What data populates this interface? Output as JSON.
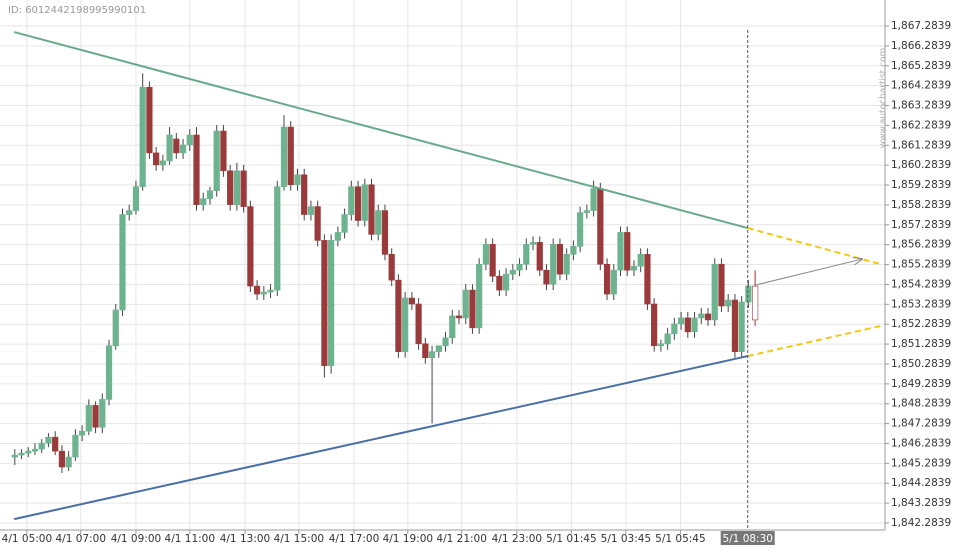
{
  "chart_data": {
    "type": "candlestick",
    "id_label": "ID: 6012442198995990101",
    "watermark": "www.autochartist.com",
    "up_color": "#6db38f",
    "down_color": "#9b3a3a",
    "grid": true,
    "ylim": [
      1842.2839,
      1867.2839
    ],
    "yticks": [
      {
        "value": 1842.2839,
        "label": "1,842.2839"
      },
      {
        "value": 1843.2839,
        "label": "1,843.2839"
      },
      {
        "value": 1844.2839,
        "label": "1,844.2839"
      },
      {
        "value": 1845.2839,
        "label": "1,845.2839"
      },
      {
        "value": 1846.2839,
        "label": "1,846.2839"
      },
      {
        "value": 1847.2839,
        "label": "1,847.2839"
      },
      {
        "value": 1848.2839,
        "label": "1,848.2839"
      },
      {
        "value": 1849.2839,
        "label": "1,849.2839"
      },
      {
        "value": 1850.2839,
        "label": "1,850.2839"
      },
      {
        "value": 1851.2839,
        "label": "1,851.2839"
      },
      {
        "value": 1852.2839,
        "label": "1,852.2839"
      },
      {
        "value": 1853.2839,
        "label": "1,853.2839"
      },
      {
        "value": 1854.2839,
        "label": "1,854.2839"
      },
      {
        "value": 1855.2839,
        "label": "1,855.2839"
      },
      {
        "value": 1856.2839,
        "label": "1,856.2839"
      },
      {
        "value": 1857.2839,
        "label": "1,857.2839"
      },
      {
        "value": 1858.2839,
        "label": "1,858.2839"
      },
      {
        "value": 1859.2839,
        "label": "1,859.2839"
      },
      {
        "value": 1860.2839,
        "label": "1,860.2839"
      },
      {
        "value": 1861.2839,
        "label": "1,861.2839"
      },
      {
        "value": 1862.2839,
        "label": "1,862.2839"
      },
      {
        "value": 1863.2839,
        "label": "1,863.2839"
      },
      {
        "value": 1864.2839,
        "label": "1,864.2839"
      },
      {
        "value": 1865.2839,
        "label": "1,865.2839"
      },
      {
        "value": 1866.2839,
        "label": "1,866.2839"
      },
      {
        "value": 1867.2839,
        "label": "1,867.2839"
      }
    ],
    "xlim": [
      -2.2,
      129.3
    ],
    "xticks": [
      {
        "value": 1.8,
        "label": "4/1 05:00"
      },
      {
        "value": 9.8,
        "label": "4/1 07:00"
      },
      {
        "value": 18,
        "label": "4/1 09:00"
      },
      {
        "value": 26,
        "label": "4/1 11:00"
      },
      {
        "value": 34.2,
        "label": "4/1 13:00"
      },
      {
        "value": 42.2,
        "label": "4/1 15:00"
      },
      {
        "value": 50.4,
        "label": "4/1 17:00"
      },
      {
        "value": 58.4,
        "label": "4/1 19:00"
      },
      {
        "value": 66.4,
        "label": "4/1 21:00"
      },
      {
        "value": 74.6,
        "label": "4/1 23:00"
      },
      {
        "value": 82.7,
        "label": "5/1 01:45"
      },
      {
        "value": 90.8,
        "label": "5/1 03:45"
      },
      {
        "value": 98.9,
        "label": "5/1 05:45"
      }
    ],
    "current_time": {
      "value": 108.9,
      "label": "5/1 08:30"
    },
    "open": [
      1845.6,
      1845.7,
      1845.8,
      1845.9,
      1846.0,
      1846.3,
      1846.6,
      1845.9,
      1845.1,
      1845.6,
      1846.7,
      1846.9,
      1848.2,
      1847.1,
      1848.5,
      1851.2,
      1853.0,
      1857.8,
      1858.0,
      1859.2,
      1864.2,
      1860.9,
      1860.3,
      1860.5,
      1861.6,
      1860.9,
      1861.3,
      1861.8,
      1858.3,
      1858.6,
      1859.0,
      1862.0,
      1860.0,
      1858.3,
      1860.0,
      1858.2,
      1854.2,
      1853.8,
      1853.9,
      1854.0,
      1859.2,
      1862.2,
      1859.3,
      1859.8,
      1857.8,
      1858.2,
      1856.5,
      1850.2,
      1856.5,
      1856.9,
      1857.8,
      1859.2,
      1857.5,
      1859.3,
      1856.8,
      1858.0,
      1855.8,
      1854.5,
      1850.9,
      1853.6,
      1853.3,
      1851.3,
      1850.6,
      1850.9,
      1851.2,
      1851.6,
      1852.7,
      1852.6,
      1854.0,
      1852.1,
      1855.3,
      1856.3,
      1854.7,
      1854.0,
      1854.8,
      1855.0,
      1855.3,
      1856.3,
      1856.4,
      1855.0,
      1854.3,
      1856.3,
      1854.8,
      1855.8,
      1856.2,
      1857.9,
      1858.0,
      1859.1,
      1855.3,
      1853.8,
      1855.0,
      1856.9,
      1855.0,
      1855.2,
      1855.8,
      1853.3,
      1851.2,
      1851.3,
      1851.8,
      1852.3,
      1852.6,
      1851.9,
      1852.6,
      1852.8,
      1852.5,
      1855.3,
      1853.2,
      1853.5,
      1850.9,
      1853.4,
      1854.2
    ],
    "high": [
      1846.0,
      1846.0,
      1846.1,
      1846.3,
      1846.5,
      1846.8,
      1846.9,
      1846.2,
      1845.9,
      1847.0,
      1847.2,
      1848.5,
      1848.4,
      1848.8,
      1851.5,
      1853.3,
      1858.1,
      1858.3,
      1859.5,
      1864.9,
      1864.5,
      1861.2,
      1860.8,
      1862.2,
      1861.9,
      1861.6,
      1862.1,
      1862.2,
      1858.9,
      1859.2,
      1862.3,
      1862.3,
      1860.3,
      1860.4,
      1860.3,
      1858.5,
      1854.5,
      1854.2,
      1854.3,
      1859.5,
      1862.8,
      1862.5,
      1860.1,
      1860.1,
      1858.5,
      1858.5,
      1856.8,
      1856.8,
      1857.2,
      1858.1,
      1859.5,
      1859.5,
      1859.6,
      1859.6,
      1858.3,
      1858.3,
      1856.1,
      1854.8,
      1853.9,
      1853.9,
      1853.6,
      1851.6,
      1851.2,
      1851.2,
      1851.9,
      1853.0,
      1853.0,
      1854.3,
      1854.3,
      1855.6,
      1856.6,
      1856.6,
      1855.0,
      1855.1,
      1855.3,
      1855.6,
      1856.6,
      1856.7,
      1856.7,
      1855.3,
      1856.6,
      1856.6,
      1856.1,
      1856.5,
      1858.2,
      1858.3,
      1859.5,
      1859.4,
      1855.6,
      1855.3,
      1857.2,
      1857.2,
      1855.5,
      1856.1,
      1856.1,
      1853.6,
      1851.5,
      1852.1,
      1852.6,
      1852.9,
      1852.9,
      1852.9,
      1853.1,
      1853.1,
      1855.6,
      1855.6,
      1853.8,
      1853.8,
      1853.7,
      1854.5,
      1855.0
    ],
    "low": [
      1845.2,
      1845.5,
      1845.6,
      1845.7,
      1845.8,
      1846.1,
      1845.7,
      1844.8,
      1844.9,
      1845.4,
      1846.4,
      1846.7,
      1846.8,
      1846.8,
      1848.2,
      1851.0,
      1852.7,
      1857.5,
      1857.8,
      1859.0,
      1860.6,
      1860.0,
      1860.0,
      1860.3,
      1860.6,
      1860.6,
      1861.0,
      1858.0,
      1858.0,
      1858.3,
      1858.7,
      1859.7,
      1858.0,
      1858.0,
      1857.9,
      1853.9,
      1853.5,
      1853.5,
      1853.6,
      1853.7,
      1859.0,
      1859.0,
      1859.0,
      1857.5,
      1857.5,
      1856.2,
      1849.6,
      1849.8,
      1856.2,
      1856.6,
      1857.5,
      1857.2,
      1857.2,
      1856.5,
      1856.5,
      1855.5,
      1854.2,
      1850.6,
      1850.6,
      1853.0,
      1851.0,
      1850.3,
      1847.3,
      1850.6,
      1850.9,
      1851.3,
      1852.3,
      1852.3,
      1851.8,
      1851.8,
      1855.0,
      1854.4,
      1853.7,
      1853.7,
      1854.5,
      1854.7,
      1855.0,
      1856.0,
      1854.7,
      1854.0,
      1854.0,
      1854.5,
      1854.5,
      1855.5,
      1855.9,
      1857.6,
      1857.7,
      1855.0,
      1853.5,
      1853.5,
      1854.7,
      1854.7,
      1854.7,
      1854.9,
      1853.0,
      1850.9,
      1850.9,
      1851.0,
      1851.5,
      1852.0,
      1851.6,
      1851.6,
      1852.3,
      1852.2,
      1852.2,
      1852.9,
      1852.9,
      1850.6,
      1850.6,
      1853.1,
      1852.2
    ],
    "close": [
      1845.7,
      1845.8,
      1845.9,
      1846.0,
      1846.3,
      1846.6,
      1845.9,
      1845.1,
      1845.6,
      1846.7,
      1846.9,
      1848.2,
      1847.1,
      1848.5,
      1851.2,
      1853.0,
      1857.8,
      1858.0,
      1859.2,
      1864.2,
      1860.9,
      1860.3,
      1860.5,
      1861.8,
      1860.9,
      1861.3,
      1861.8,
      1858.3,
      1858.6,
      1859.0,
      1862.0,
      1860.0,
      1858.3,
      1860.0,
      1858.2,
      1854.2,
      1853.8,
      1853.9,
      1854.0,
      1859.2,
      1862.2,
      1859.3,
      1859.8,
      1857.8,
      1858.2,
      1856.5,
      1850.2,
      1856.5,
      1856.9,
      1857.8,
      1859.2,
      1857.5,
      1859.3,
      1856.8,
      1858.0,
      1855.8,
      1854.5,
      1850.9,
      1853.6,
      1853.3,
      1851.3,
      1850.6,
      1850.9,
      1851.2,
      1851.6,
      1852.7,
      1852.6,
      1854.0,
      1852.1,
      1855.3,
      1856.3,
      1854.7,
      1854.0,
      1854.8,
      1855.0,
      1855.3,
      1856.3,
      1856.4,
      1855.0,
      1854.3,
      1856.3,
      1854.8,
      1855.8,
      1856.2,
      1857.9,
      1858.0,
      1859.1,
      1855.3,
      1853.8,
      1855.0,
      1856.9,
      1855.0,
      1855.2,
      1855.8,
      1853.3,
      1851.2,
      1851.3,
      1851.8,
      1852.3,
      1852.6,
      1851.9,
      1852.6,
      1852.8,
      1852.5,
      1855.3,
      1853.2,
      1853.5,
      1850.9,
      1853.4,
      1854.2,
      1852.5
    ],
    "trendlines": {
      "upper": {
        "x": [
          -0.1,
          108.9
        ],
        "y": [
          1866.98,
          1857.12
        ],
        "color": "#6aaa8c"
      },
      "lower": {
        "x": [
          -0.1,
          108.9
        ],
        "y": [
          1842.48,
          1850.68
        ],
        "color": "#4a6fa5"
      },
      "upper_projection": {
        "x": [
          108.9,
          128.6
        ],
        "y": [
          1857.12,
          1855.31
        ],
        "color": "#f2c80f"
      },
      "lower_projection": {
        "x": [
          108.9,
          128.6
        ],
        "y": [
          1850.68,
          1852.19
        ],
        "color": "#f2c80f"
      }
    },
    "forecast_arrow": {
      "x": [
        110,
        125.9
      ],
      "y": [
        1854.25,
        1855.56
      ],
      "color": "#888888"
    }
  }
}
